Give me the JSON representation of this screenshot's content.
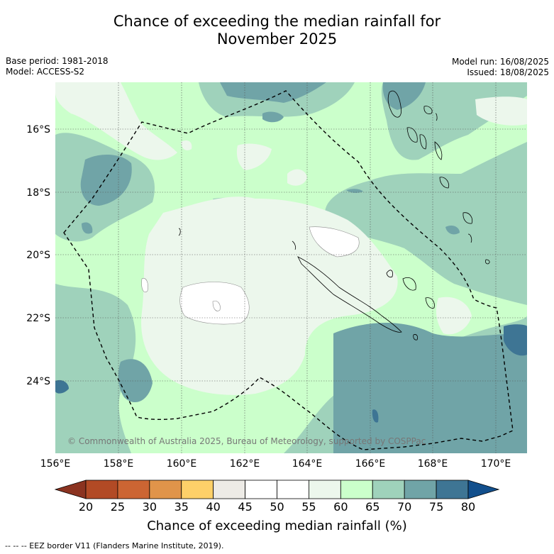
{
  "title_line1": "Chance of exceeding the median rainfall for",
  "title_line2": "November 2025",
  "base_period": "Base period: 1981-2018",
  "model": "Model: ACCESS-S2",
  "model_run": "Model run: 16/08/2025",
  "issued": "Issued: 18/08/2025",
  "copyright": "© Commonwealth of Australia 2025, Bureau of Meteorology, supported by COSPPac",
  "lat_labels": [
    "16°S",
    "18°S",
    "20°S",
    "22°S",
    "24°S"
  ],
  "lon_labels": [
    "156°E",
    "158°E",
    "160°E",
    "162°E",
    "164°E",
    "166°E",
    "168°E",
    "170°E"
  ],
  "colorbar": {
    "title": "Chance of exceeding median rainfall (%)",
    "ticks": [
      "20",
      "25",
      "30",
      "35",
      "40",
      "45",
      "50",
      "55",
      "60",
      "65",
      "70",
      "75",
      "80"
    ],
    "colors": [
      "#b24a25",
      "#cc6533",
      "#e0944a",
      "#fdd069",
      "#edebe6",
      "#ffffff",
      "#ffffff",
      "#ecf7ec",
      "#cbffcb",
      "#9fd2bb",
      "#70a4a7",
      "#3e7594"
    ],
    "under_color": "#8b3320",
    "over_color": "#124f8c"
  },
  "footnote": "--  --  -- EEZ border V11 (Flanders Marine Institute, 2019)."
}
